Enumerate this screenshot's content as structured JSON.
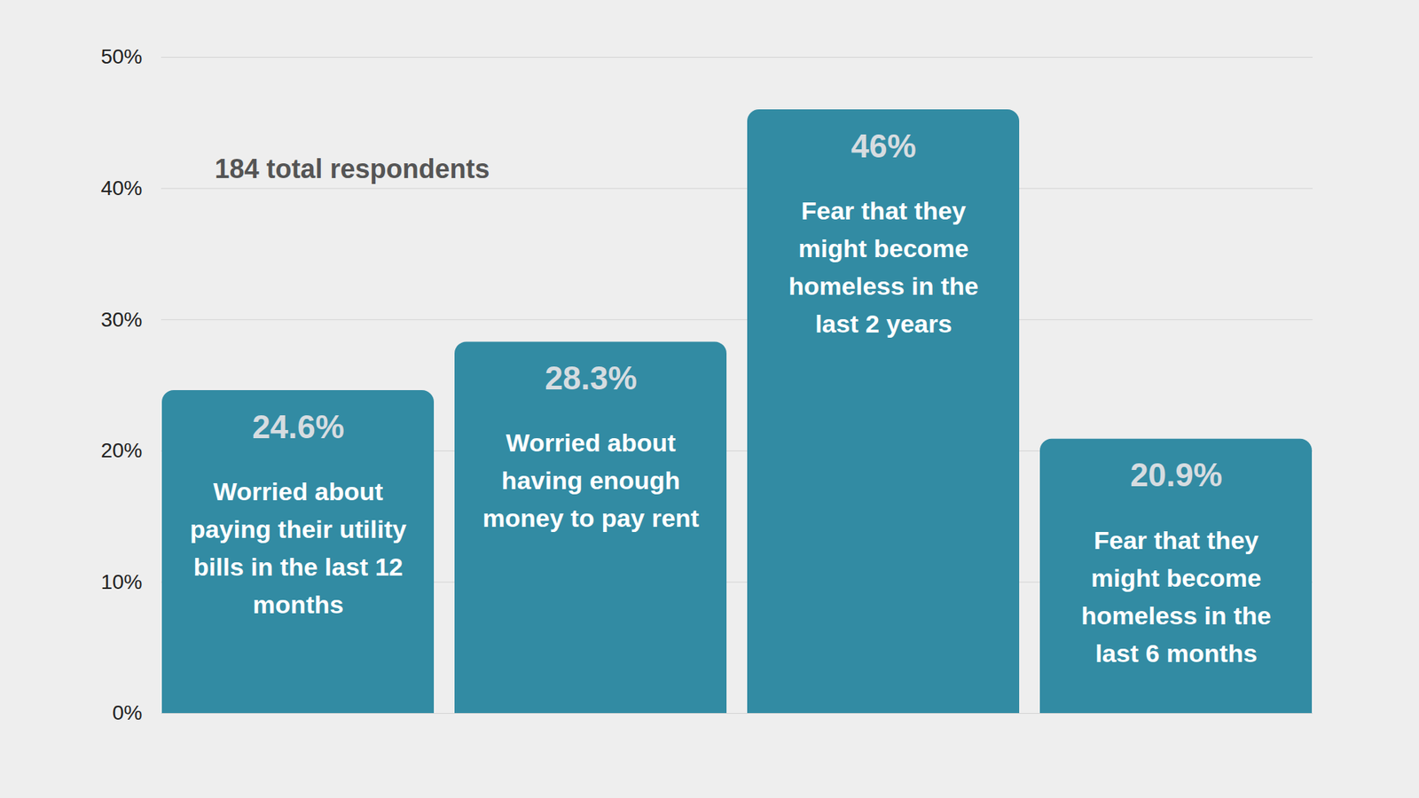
{
  "chart_data": {
    "type": "bar",
    "annotation": "184 total respondents",
    "categories": [
      "Worried about paying their utility bills in the last 12 months",
      "Worried about having enough money to pay rent",
      "Fear that they might become homeless in the last 2 years",
      "Fear that they might become homeless in the last 6 months"
    ],
    "values": [
      24.6,
      28.3,
      46,
      20.9
    ],
    "value_labels": [
      "24.6%",
      "28.3%",
      "46%",
      "20.9%"
    ],
    "color": "#328ba3",
    "ylim": [
      0,
      50
    ],
    "yticks": [
      {
        "value": 0,
        "label": "0%"
      },
      {
        "value": 10,
        "label": "10%"
      },
      {
        "value": 20,
        "label": "20%"
      },
      {
        "value": 30,
        "label": "30%"
      },
      {
        "value": 40,
        "label": "40%"
      },
      {
        "value": 50,
        "label": "50%"
      }
    ],
    "grid": true,
    "data_labels": true,
    "tick_labels": "y"
  }
}
